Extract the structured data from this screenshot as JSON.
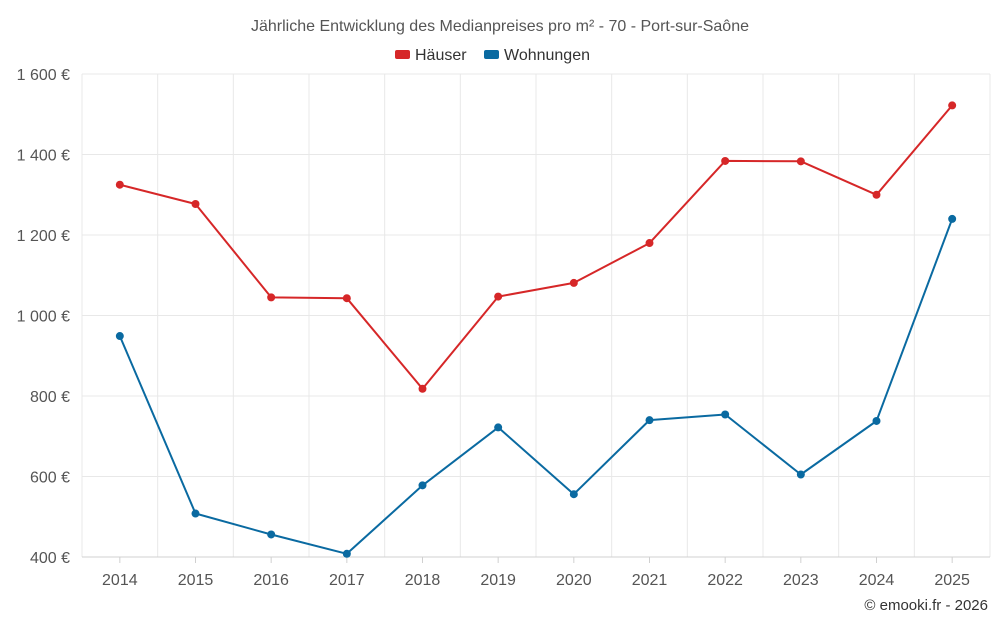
{
  "chart_data": {
    "type": "line",
    "title": "Jährliche Entwicklung des Medianpreises pro m² - 70 - Port-sur-Saône",
    "categories": [
      "2014",
      "2015",
      "2016",
      "2017",
      "2018",
      "2019",
      "2020",
      "2021",
      "2022",
      "2023",
      "2024",
      "2025"
    ],
    "series": [
      {
        "name": "Häuser",
        "color": "#d62728",
        "values": [
          1325,
          1277,
          1045,
          1043,
          818,
          1047,
          1081,
          1180,
          1384,
          1383,
          1300,
          1522
        ]
      },
      {
        "name": "Wohnungen",
        "color": "#0a6aa1",
        "values": [
          949,
          508,
          456,
          408,
          578,
          722,
          556,
          740,
          754,
          605,
          738,
          1240
        ]
      }
    ],
    "ylim": [
      400,
      1600
    ],
    "yticks": [
      400,
      600,
      800,
      1000,
      1200,
      1400,
      1600
    ],
    "ytick_labels": [
      "400 €",
      "600 €",
      "800 €",
      "1 000 €",
      "1 200 €",
      "1 400 €",
      "1 600 €"
    ],
    "legend_position": "top-center",
    "grid": true,
    "credit": "© emooki.fr - 2026"
  }
}
